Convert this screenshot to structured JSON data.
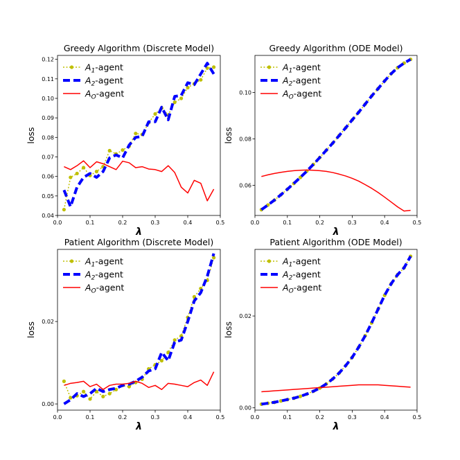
{
  "colors": {
    "a1": "#bfbf00",
    "a2": "#0000ff",
    "ao": "#ff0000"
  },
  "chart_data": [
    {
      "type": "line",
      "title": "Greedy Algorithm (Discrete Model)",
      "xlabel": "λ",
      "ylabel": "loss",
      "xlim": [
        0.0,
        0.5
      ],
      "ylim": [
        0.04,
        0.122
      ],
      "xticks": [
        "0.0",
        "0.1",
        "0.2",
        "0.3",
        "0.4",
        "0.5"
      ],
      "yticks": [
        "0.04",
        "0.05",
        "0.06",
        "0.07",
        "0.08",
        "0.09",
        "0.10",
        "0.11",
        "0.12"
      ],
      "legend_position": "top-left",
      "x": [
        0.02,
        0.04,
        0.06,
        0.08,
        0.1,
        0.12,
        0.14,
        0.16,
        0.18,
        0.2,
        0.22,
        0.24,
        0.26,
        0.28,
        0.3,
        0.32,
        0.34,
        0.36,
        0.38,
        0.4,
        0.42,
        0.44,
        0.46,
        0.48
      ],
      "series": [
        {
          "name": "A₁-agent",
          "key": "a1",
          "values": [
            0.043,
            0.0595,
            0.0615,
            0.0645,
            0.0605,
            0.0625,
            0.065,
            0.0732,
            0.0715,
            0.0735,
            0.0755,
            0.082,
            0.0815,
            0.0875,
            0.092,
            0.095,
            0.0915,
            0.098,
            0.1,
            0.1055,
            0.1075,
            0.1095,
            0.1155,
            0.116
          ]
        },
        {
          "name": "A₂-agent",
          "key": "a2",
          "values": [
            0.053,
            0.0445,
            0.0545,
            0.0595,
            0.0615,
            0.0595,
            0.0625,
            0.0695,
            0.071,
            0.0695,
            0.076,
            0.08,
            0.0805,
            0.088,
            0.088,
            0.0955,
            0.089,
            0.101,
            0.1015,
            0.108,
            0.107,
            0.1125,
            0.118,
            0.1125
          ]
        },
        {
          "name": "A_O-agent",
          "key": "ao",
          "values": [
            0.065,
            0.0635,
            0.0655,
            0.068,
            0.0645,
            0.0675,
            0.0665,
            0.065,
            0.0635,
            0.0678,
            0.067,
            0.0645,
            0.065,
            0.0638,
            0.0635,
            0.0625,
            0.0655,
            0.062,
            0.0545,
            0.0515,
            0.058,
            0.0565,
            0.0475,
            0.0535
          ]
        }
      ]
    },
    {
      "type": "line",
      "title": "Greedy Algorithm (ODE Model)",
      "xlabel": "λ",
      "ylabel": "loss",
      "xlim": [
        0.0,
        0.5
      ],
      "ylim": [
        0.047,
        0.116
      ],
      "xticks": [
        "0.0",
        "0.1",
        "0.2",
        "0.3",
        "0.4",
        "0.5"
      ],
      "yticks": [
        "0.06",
        "0.08",
        "0.10"
      ],
      "legend_position": "top-left",
      "x": [
        0.02,
        0.04,
        0.06,
        0.08,
        0.1,
        0.12,
        0.14,
        0.16,
        0.18,
        0.2,
        0.22,
        0.24,
        0.26,
        0.28,
        0.3,
        0.32,
        0.34,
        0.36,
        0.38,
        0.4,
        0.42,
        0.44,
        0.46,
        0.48
      ],
      "series": [
        {
          "name": "A₁-agent",
          "key": "a1",
          "values": [
            0.0495,
            0.0515,
            0.0536,
            0.0559,
            0.0583,
            0.0608,
            0.0634,
            0.0661,
            0.069,
            0.072,
            0.0751,
            0.0782,
            0.0815,
            0.0848,
            0.0882,
            0.0915,
            0.095,
            0.0985,
            0.1017,
            0.105,
            0.1081,
            0.1107,
            0.1127,
            0.1143
          ]
        },
        {
          "name": "A₂-agent",
          "key": "a2",
          "values": [
            0.0495,
            0.0515,
            0.0536,
            0.0559,
            0.0583,
            0.0608,
            0.0634,
            0.0661,
            0.069,
            0.072,
            0.0751,
            0.0782,
            0.0815,
            0.0848,
            0.0882,
            0.0915,
            0.095,
            0.0985,
            0.1017,
            0.105,
            0.1081,
            0.1107,
            0.1127,
            0.1143
          ]
        },
        {
          "name": "A_O-agent",
          "key": "ao",
          "values": [
            0.0638,
            0.0645,
            0.0651,
            0.0656,
            0.066,
            0.0663,
            0.0665,
            0.0666,
            0.0665,
            0.0663,
            0.066,
            0.0655,
            0.0648,
            0.064,
            0.063,
            0.0618,
            0.0603,
            0.0587,
            0.0569,
            0.0549,
            0.0528,
            0.0507,
            0.0489,
            0.0492
          ]
        }
      ]
    },
    {
      "type": "line",
      "title": "Patient Algorithm (Discrete Model)",
      "xlabel": "λ",
      "ylabel": "loss",
      "xlim": [
        0.0,
        0.5
      ],
      "ylim": [
        -0.0015,
        0.0375
      ],
      "xticks": [
        "0.0",
        "0.1",
        "0.2",
        "0.3",
        "0.4",
        "0.5"
      ],
      "yticks": [
        "0.00",
        "0.02"
      ],
      "legend_position": "top-left",
      "x": [
        0.02,
        0.04,
        0.06,
        0.08,
        0.1,
        0.12,
        0.14,
        0.16,
        0.18,
        0.2,
        0.22,
        0.24,
        0.26,
        0.28,
        0.3,
        0.32,
        0.34,
        0.36,
        0.38,
        0.4,
        0.42,
        0.44,
        0.46,
        0.48
      ],
      "series": [
        {
          "name": "A₁-agent",
          "key": "a1",
          "values": [
            0.0055,
            0.0015,
            0.002,
            0.003,
            0.0012,
            0.003,
            0.0018,
            0.0025,
            0.0035,
            0.0045,
            0.0042,
            0.0052,
            0.006,
            0.0085,
            0.0095,
            0.0105,
            0.0125,
            0.0155,
            0.0165,
            0.021,
            0.026,
            0.028,
            0.03,
            0.0355
          ]
        },
        {
          "name": "A₂-agent",
          "key": "a2",
          "values": [
            0.0,
            0.001,
            0.0025,
            0.0018,
            0.0025,
            0.0038,
            0.003,
            0.0035,
            0.0038,
            0.0045,
            0.0048,
            0.0055,
            0.0065,
            0.008,
            0.0085,
            0.0125,
            0.0105,
            0.015,
            0.0155,
            0.02,
            0.025,
            0.027,
            0.031,
            0.0365
          ]
        },
        {
          "name": "A_O-agent",
          "key": "ao",
          "values": [
            0.0045,
            0.005,
            0.0052,
            0.0055,
            0.0042,
            0.0048,
            0.0035,
            0.0045,
            0.0048,
            0.0048,
            0.005,
            0.0055,
            0.005,
            0.004,
            0.0045,
            0.0035,
            0.005,
            0.0048,
            0.0045,
            0.0042,
            0.0052,
            0.0058,
            0.0045,
            0.0078
          ]
        }
      ]
    },
    {
      "type": "line",
      "title": "Patient Algorithm (ODE Model)",
      "xlabel": "λ",
      "ylabel": "loss",
      "xlim": [
        0.0,
        0.5
      ],
      "ylim": [
        -0.0005,
        0.0345
      ],
      "xticks": [
        "0.0",
        "0.1",
        "0.2",
        "0.3",
        "0.4",
        "0.5"
      ],
      "yticks": [
        "0.00",
        "0.02"
      ],
      "legend_position": "top-left",
      "x": [
        0.02,
        0.04,
        0.06,
        0.08,
        0.1,
        0.12,
        0.14,
        0.16,
        0.18,
        0.2,
        0.22,
        0.24,
        0.26,
        0.28,
        0.3,
        0.32,
        0.34,
        0.36,
        0.38,
        0.4,
        0.42,
        0.44,
        0.46,
        0.48
      ],
      "series": [
        {
          "name": "A₁-agent",
          "key": "a1",
          "values": [
            0.0008,
            0.001,
            0.0012,
            0.0015,
            0.0018,
            0.0021,
            0.0025,
            0.003,
            0.0036,
            0.0043,
            0.0052,
            0.0063,
            0.0076,
            0.0092,
            0.011,
            0.0132,
            0.0157,
            0.0185,
            0.0215,
            0.0245,
            0.027,
            0.029,
            0.0305,
            0.033
          ]
        },
        {
          "name": "A₂-agent",
          "key": "a2",
          "values": [
            0.0008,
            0.001,
            0.0012,
            0.0015,
            0.0018,
            0.0021,
            0.0025,
            0.003,
            0.0036,
            0.0043,
            0.0052,
            0.0063,
            0.0076,
            0.0092,
            0.011,
            0.0132,
            0.0157,
            0.0185,
            0.0215,
            0.0245,
            0.027,
            0.029,
            0.0305,
            0.033
          ]
        },
        {
          "name": "A_O-agent",
          "key": "ao",
          "values": [
            0.0035,
            0.0036,
            0.0037,
            0.0038,
            0.0039,
            0.004,
            0.0041,
            0.0042,
            0.0043,
            0.0044,
            0.0045,
            0.0046,
            0.0047,
            0.0048,
            0.0049,
            0.005,
            0.005,
            0.005,
            0.005,
            0.0049,
            0.0048,
            0.0047,
            0.0046,
            0.0045
          ]
        }
      ]
    }
  ]
}
